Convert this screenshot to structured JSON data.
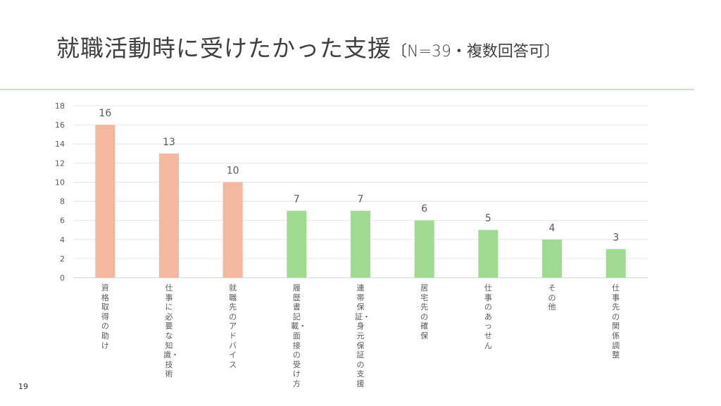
{
  "slide": {
    "title_main": "就職活動時に受けたかった支援",
    "title_sub": "〔N=39・複数回答可〕",
    "page_number": "19"
  },
  "colors": {
    "highlight": "#f4b8a0",
    "normal": "#9fdb90",
    "grid": "#e6e6e6",
    "rule": "#c9e3c0"
  },
  "chart_data": {
    "type": "bar",
    "title": "就職活動時に受けたかった支援〔N=39・複数回答可〕",
    "categories": [
      "資格取得の助け",
      "仕事に必要な知識・技術",
      "就職先のアドバイス",
      "履歴書記載・面接の受け方",
      "連帯保証・身元保証の支援",
      "居宅先の確保",
      "仕事のあっせん",
      "その他",
      "仕事先の関係調整"
    ],
    "values": [
      16,
      13,
      10,
      7,
      7,
      6,
      5,
      4,
      3
    ],
    "highlighted": [
      true,
      true,
      true,
      false,
      false,
      false,
      false,
      false,
      false
    ],
    "ylim": [
      0,
      18
    ],
    "yticks": [
      0,
      2,
      4,
      6,
      8,
      10,
      12,
      14,
      16,
      18
    ],
    "xlabel": "",
    "ylabel": "",
    "grid": true,
    "data_labels": true,
    "legend": "none"
  }
}
